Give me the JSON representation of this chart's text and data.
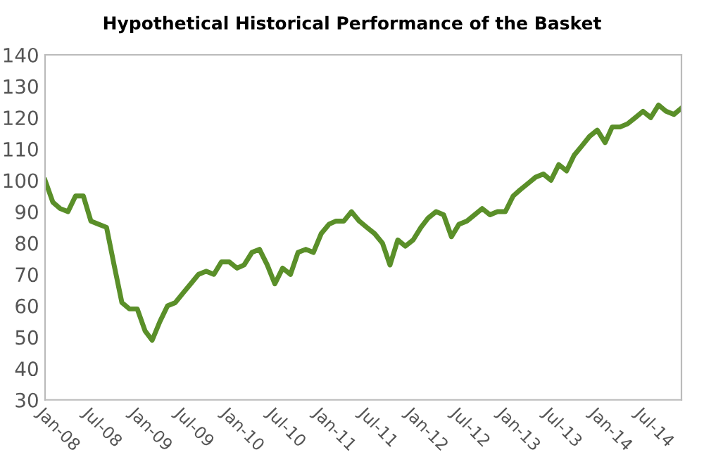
{
  "chart_data": {
    "type": "line",
    "title": "Hypothetical Historical Performance of the Basket",
    "x": [
      "2008-01",
      "2008-02",
      "2008-03",
      "2008-04",
      "2008-05",
      "2008-06",
      "2008-07",
      "2008-08",
      "2008-09",
      "2008-10",
      "2008-11",
      "2008-12",
      "2009-01",
      "2009-02",
      "2009-03",
      "2009-04",
      "2009-05",
      "2009-06",
      "2009-07",
      "2009-08",
      "2009-09",
      "2009-10",
      "2009-11",
      "2009-12",
      "2010-01",
      "2010-02",
      "2010-03",
      "2010-04",
      "2010-05",
      "2010-06",
      "2010-07",
      "2010-08",
      "2010-09",
      "2010-10",
      "2010-11",
      "2010-12",
      "2011-01",
      "2011-02",
      "2011-03",
      "2011-04",
      "2011-05",
      "2011-06",
      "2011-07",
      "2011-08",
      "2011-09",
      "2011-10",
      "2011-11",
      "2011-12",
      "2012-01",
      "2012-02",
      "2012-03",
      "2012-04",
      "2012-05",
      "2012-06",
      "2012-07",
      "2012-08",
      "2012-09",
      "2012-10",
      "2012-11",
      "2012-12",
      "2013-01",
      "2013-02",
      "2013-03",
      "2013-04",
      "2013-05",
      "2013-06",
      "2013-07",
      "2013-08",
      "2013-09",
      "2013-10",
      "2013-11",
      "2013-12",
      "2014-01",
      "2014-02",
      "2014-03",
      "2014-04",
      "2014-05",
      "2014-06",
      "2014-07",
      "2014-08",
      "2014-09",
      "2014-10",
      "2014-11",
      "2014-12"
    ],
    "series": [
      {
        "color": "#5a8f29",
        "values": [
          100,
          93,
          91,
          90,
          95,
          95,
          87,
          86,
          85,
          73,
          61,
          59,
          59,
          52,
          49,
          55,
          60,
          61,
          64,
          67,
          70,
          71,
          70,
          74,
          74,
          72,
          73,
          77,
          78,
          73,
          67,
          72,
          70,
          77,
          78,
          77,
          83,
          86,
          87,
          87,
          90,
          87,
          85,
          83,
          80,
          73,
          81,
          79,
          81,
          85,
          88,
          90,
          89,
          82,
          86,
          87,
          89,
          91,
          89,
          90,
          90,
          95,
          97,
          99,
          101,
          102,
          100,
          105,
          103,
          108,
          111,
          114,
          116,
          112,
          117,
          117,
          118,
          120,
          122,
          120,
          124,
          122,
          121,
          123
        ]
      }
    ],
    "xlim": [
      "2008-01",
      "2014-12"
    ],
    "xticks": [
      {
        "value": "2008-01",
        "label": "Jan-08"
      },
      {
        "value": "2008-07",
        "label": "Jul-08"
      },
      {
        "value": "2009-01",
        "label": "Jan-09"
      },
      {
        "value": "2009-07",
        "label": "Jul-09"
      },
      {
        "value": "2010-01",
        "label": "Jan-10"
      },
      {
        "value": "2010-07",
        "label": "Jul-10"
      },
      {
        "value": "2011-01",
        "label": "Jan-11"
      },
      {
        "value": "2011-07",
        "label": "Jul-11"
      },
      {
        "value": "2012-01",
        "label": "Jan-12"
      },
      {
        "value": "2012-07",
        "label": "Jul-12"
      },
      {
        "value": "2013-01",
        "label": "Jan-13"
      },
      {
        "value": "2013-07",
        "label": "Jul-13"
      },
      {
        "value": "2014-01",
        "label": "Jan-14"
      },
      {
        "value": "2014-07",
        "label": "Jul-14"
      }
    ],
    "ylim": [
      30,
      140
    ],
    "yticks": [
      30,
      40,
      50,
      60,
      70,
      80,
      90,
      100,
      110,
      120,
      130,
      140
    ],
    "grid": false,
    "legend": false,
    "marker": "none",
    "line_style": "solid"
  }
}
